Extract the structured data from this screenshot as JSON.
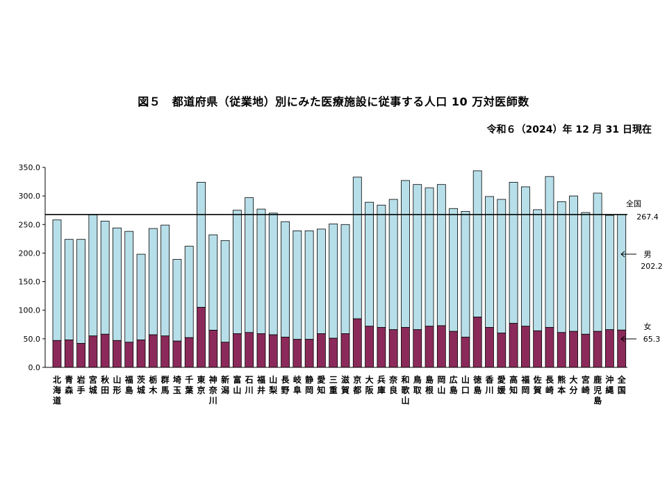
{
  "page": {
    "title": "図５　都道府県（従業地）別にみた医療施設に従事する人口 10 万対医師数",
    "as_of": "令和６（2024）年 12 月 31 日現在"
  },
  "chart_data": {
    "type": "bar",
    "stacked": true,
    "title": "図５　都道府県（従業地）別にみた医療施設に従事する人口 10 万対医師数",
    "ylim": [
      0,
      350
    ],
    "yticks": [
      "0.0",
      "50.0",
      "100.0",
      "150.0",
      "200.0",
      "250.0",
      "300.0",
      "350.0"
    ],
    "ytick_values": [
      0,
      50,
      100,
      150,
      200,
      250,
      300,
      350
    ],
    "categories": [
      "北海道",
      "青森",
      "岩手",
      "宮城",
      "秋田",
      "山形",
      "福島",
      "茨城",
      "栃木",
      "群馬",
      "埼玉",
      "千葉",
      "東京",
      "神奈川",
      "新潟",
      "富山",
      "石川",
      "福井",
      "山梨",
      "長野",
      "岐阜",
      "静岡",
      "愛知",
      "三重",
      "滋賀",
      "京都",
      "大阪",
      "兵庫",
      "奈良",
      "和歌山",
      "鳥取",
      "島根",
      "岡山",
      "広島",
      "山口",
      "徳島",
      "香川",
      "愛媛",
      "高知",
      "福岡",
      "佐賀",
      "長崎",
      "熊本",
      "大分",
      "宮崎",
      "鹿児島",
      "沖縄",
      "全国"
    ],
    "category_labels": [
      [
        "北",
        "海",
        "道"
      ],
      [
        "青",
        "森"
      ],
      [
        "岩",
        "手"
      ],
      [
        "宮",
        "城"
      ],
      [
        "秋",
        "田"
      ],
      [
        "山",
        "形"
      ],
      [
        "福",
        "島"
      ],
      [
        "茨",
        "城"
      ],
      [
        "栃",
        "木"
      ],
      [
        "群",
        "馬"
      ],
      [
        "埼",
        "玉"
      ],
      [
        "千",
        "葉"
      ],
      [
        "東",
        "京"
      ],
      [
        "神",
        "奈",
        "川"
      ],
      [
        "新",
        "潟"
      ],
      [
        "富",
        "山"
      ],
      [
        "石",
        "川"
      ],
      [
        "福",
        "井"
      ],
      [
        "山",
        "梨"
      ],
      [
        "長",
        "野"
      ],
      [
        "岐",
        "阜"
      ],
      [
        "静",
        "岡"
      ],
      [
        "愛",
        "知"
      ],
      [
        "三",
        "重"
      ],
      [
        "滋",
        "賀"
      ],
      [
        "京",
        "都"
      ],
      [
        "大",
        "阪"
      ],
      [
        "兵",
        "庫"
      ],
      [
        "奈",
        "良"
      ],
      [
        "和",
        "歌",
        "山"
      ],
      [
        "鳥",
        "取"
      ],
      [
        "島",
        "根"
      ],
      [
        "岡",
        "山"
      ],
      [
        "広",
        "島"
      ],
      [
        "山",
        "口"
      ],
      [
        "徳",
        "島"
      ],
      [
        "香",
        "川"
      ],
      [
        "愛",
        "媛"
      ],
      [
        "高",
        "知"
      ],
      [
        "福",
        "岡"
      ],
      [
        "佐",
        "賀"
      ],
      [
        "長",
        "崎"
      ],
      [
        "熊",
        "本"
      ],
      [
        "大",
        "分"
      ],
      [
        "宮",
        "崎"
      ],
      [
        "鹿",
        "児",
        "島"
      ],
      [
        "沖",
        "縄"
      ],
      [
        "全",
        "国"
      ]
    ],
    "series": [
      {
        "name": "女",
        "color": "#8b2a5a",
        "values": [
          47,
          48,
          42,
          55,
          58,
          47,
          44,
          48,
          57,
          55,
          46,
          52,
          105,
          65,
          44,
          59,
          61,
          59,
          57,
          53,
          49,
          49,
          59,
          51,
          59,
          85,
          72,
          70,
          66,
          70,
          66,
          72,
          73,
          63,
          53,
          88,
          70,
          60,
          77,
          72,
          64,
          70,
          61,
          63,
          58,
          63,
          66,
          65.3
        ]
      },
      {
        "name": "男",
        "color": "#b7dfe9",
        "values": [
          211,
          176,
          182,
          212,
          198,
          197,
          194,
          150,
          186,
          194,
          143,
          160,
          219,
          167,
          178,
          216,
          236,
          218,
          213,
          202,
          190,
          190,
          183,
          200,
          191,
          248,
          217,
          214,
          228,
          257,
          254,
          242,
          247,
          215,
          220,
          256,
          229,
          234,
          247,
          244,
          212,
          264,
          229,
          237,
          213,
          242,
          200,
          202.2
        ]
      }
    ],
    "reference_line": {
      "label": "全国",
      "value": 267.4,
      "value_label": "267.4"
    },
    "annotations": [
      {
        "label": "男",
        "value": "202.2"
      },
      {
        "label": "女",
        "value": "65.3"
      }
    ],
    "legend": "right"
  }
}
